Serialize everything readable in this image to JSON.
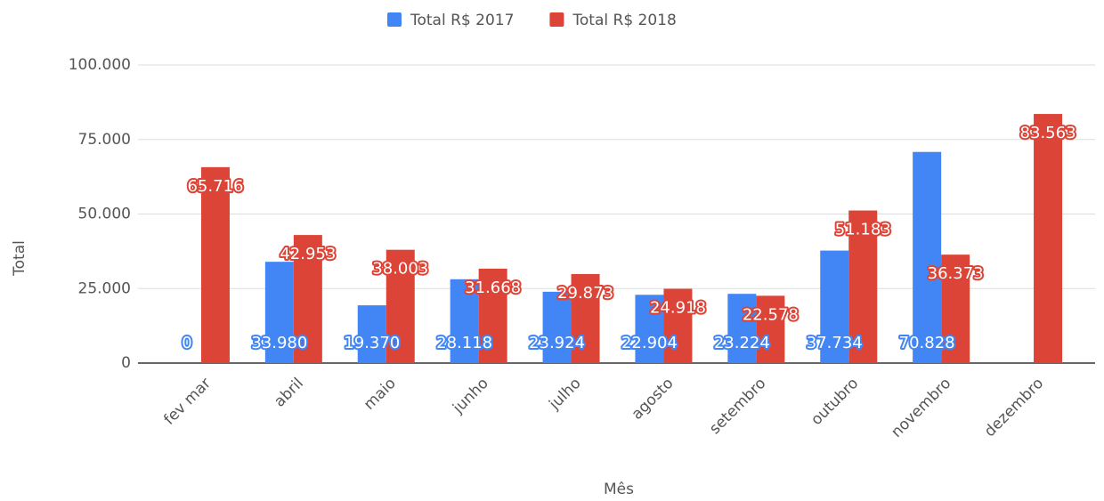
{
  "chart_data": {
    "type": "bar",
    "y_label": "Total",
    "x_label": "Mês",
    "categories": [
      "fev mar",
      "abril",
      "maio",
      "junho",
      "julho",
      "agosto",
      "setembro",
      "outubro",
      "novembro",
      "dezembro"
    ],
    "series": [
      {
        "name": "Total R$ 2017",
        "color": "#4285f4",
        "values": [
          0,
          33980,
          19370,
          28118,
          23924,
          22904,
          23224,
          37734,
          70828,
          null
        ],
        "value_labels": [
          "0",
          "33.980",
          "19.370",
          "28.118",
          "23.924",
          "22.904",
          "23.224",
          "37.734",
          "70.828",
          null
        ]
      },
      {
        "name": "Total R$ 2018",
        "color": "#db4437",
        "values": [
          65716,
          42953,
          38003,
          31668,
          29873,
          24918,
          22578,
          51183,
          36373,
          83563
        ],
        "value_labels": [
          "65.716",
          "42.953",
          "38.003",
          "31.668",
          "29.873",
          "24.918",
          "22.578",
          "51.183",
          "36.373",
          "83.563"
        ]
      }
    ],
    "ylim": [
      0,
      100000
    ],
    "yticks": [
      0,
      {
        "value": 25000,
        "label": "25.000"
      },
      {
        "value": 50000,
        "label": "50.000"
      },
      {
        "value": 75000,
        "label": "75.000"
      },
      {
        "value": 100000,
        "label": "100.000"
      }
    ],
    "grid": true,
    "legend": "top"
  }
}
